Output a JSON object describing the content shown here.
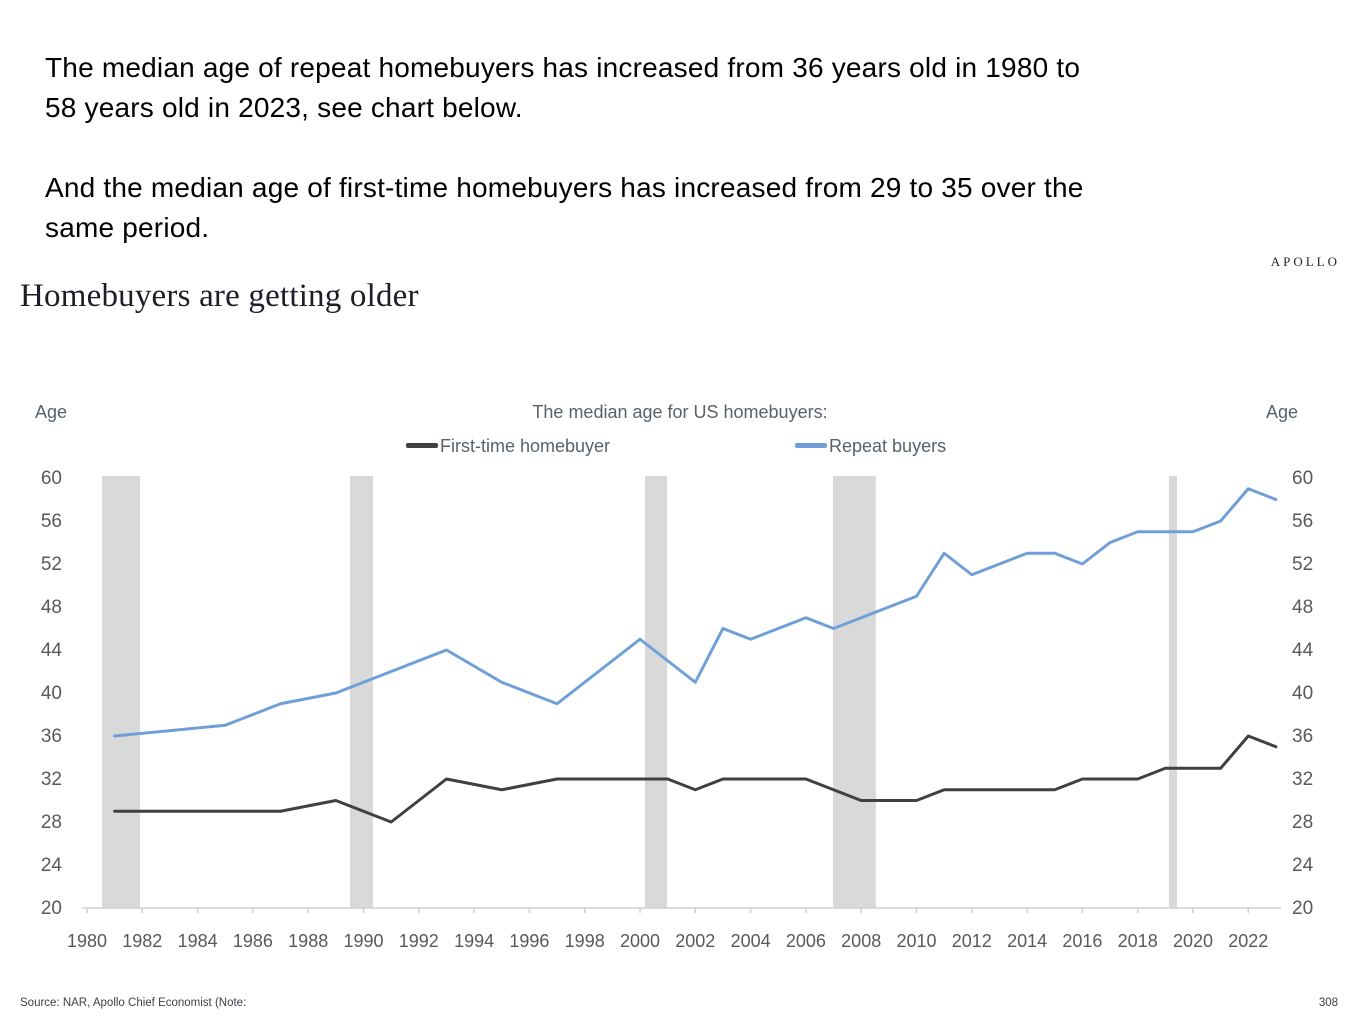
{
  "intro": {
    "paragraph1_lines": [
      "The median age of repeat homebuyers has increased from 36 years old in 1980 to",
      "58 years old in 2023, see chart below."
    ],
    "paragraph2_lines": [
      "And the median age of first-time homebuyers has increased from 29 to 35 over the",
      "same period."
    ]
  },
  "header": {
    "brand": "APOLLO",
    "title": "Homebuyers are getting older"
  },
  "footer": {
    "source": "Source: NAR, Apollo Chief Economist (Note:",
    "page_number": "308"
  },
  "chart_data": {
    "type": "line",
    "title": "The median age for US homebuyers:",
    "y_axis_label_left": "Age",
    "y_axis_label_right": "Age",
    "grid": false,
    "legend_position": "top",
    "ylim": [
      20,
      60
    ],
    "xlim": [
      1980,
      2023.2
    ],
    "y_ticks": [
      60,
      56,
      52,
      48,
      44,
      40,
      36,
      32,
      28,
      24,
      20
    ],
    "x_ticks": [
      1980,
      1982,
      1984,
      1986,
      1988,
      1990,
      1992,
      1994,
      1996,
      1998,
      2000,
      2002,
      2004,
      2006,
      2008,
      2010,
      2012,
      2014,
      2016,
      2018,
      2020,
      2022
    ],
    "years": [
      1981,
      1982,
      1983,
      1984,
      1985,
      1986,
      1987,
      1988,
      1989,
      1990,
      1991,
      1992,
      1993,
      1994,
      1995,
      1996,
      1997,
      1998,
      1999,
      2000,
      2001,
      2002,
      2003,
      2004,
      2005,
      2006,
      2007,
      2008,
      2009,
      2010,
      2011,
      2012,
      2013,
      2014,
      2015,
      2016,
      2017,
      2018,
      2019,
      2020,
      2021,
      2022,
      2023
    ],
    "series": [
      {
        "name": "First-time homebuyer",
        "color": "#404040",
        "values": [
          29,
          29,
          29,
          29,
          29,
          29,
          29,
          29.5,
          30,
          29,
          28,
          30,
          32,
          31.5,
          31,
          31.5,
          32,
          32,
          32,
          32,
          32,
          31,
          32,
          32,
          32,
          32,
          31,
          30,
          30,
          30,
          31,
          31,
          31,
          31,
          31,
          32,
          32,
          32,
          33,
          33,
          33,
          36,
          35
        ]
      },
      {
        "name": "Repeat buyers",
        "color": "#6f9fd8",
        "values": [
          36,
          36.25,
          36.5,
          36.75,
          37,
          38,
          39,
          39.5,
          40,
          41,
          42,
          43,
          44,
          42.5,
          41,
          40,
          39,
          41,
          43,
          45,
          43,
          41,
          46,
          45,
          46,
          47,
          46,
          47,
          48,
          49,
          53,
          51,
          52,
          53,
          53,
          52,
          54,
          55,
          55,
          55,
          56,
          59,
          58
        ]
      }
    ],
    "recession_bands": [
      {
        "start": 1980.54,
        "end": 1981.92
      },
      {
        "start": 1989.51,
        "end": 1990.34
      },
      {
        "start": 2000.18,
        "end": 2000.98
      },
      {
        "start": 2006.98,
        "end": 2008.53
      },
      {
        "start": 2019.13,
        "end": 2019.42
      }
    ],
    "band_color": "#d9d9d9",
    "axis_color": "#cfcfcf",
    "tick_label_color": "#595959"
  }
}
